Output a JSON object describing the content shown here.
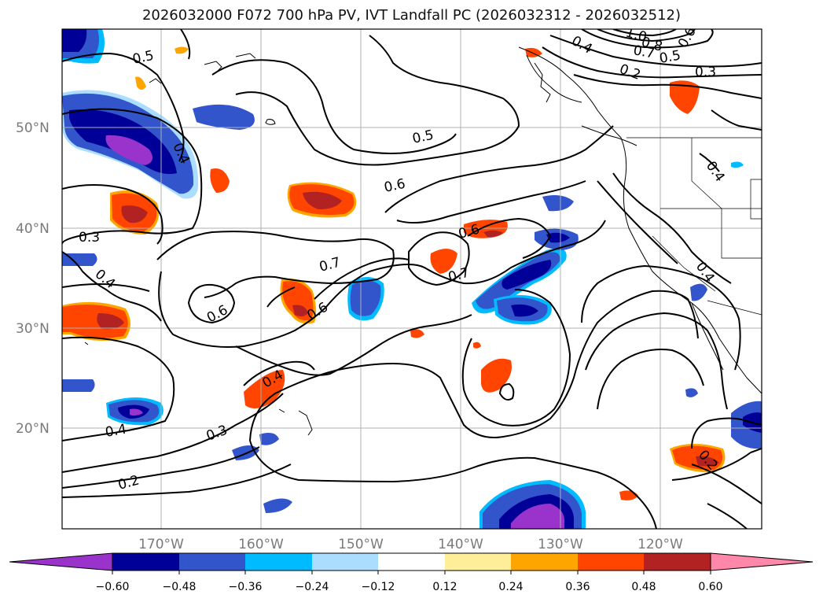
{
  "title": "2026032000 F072 700 hPa PV, IVT Landfall PC (2026032312 - 2026032512)",
  "map": {
    "lat_ticks": [
      "50°N",
      "40°N",
      "30°N",
      "20°N"
    ],
    "lon_ticks": [
      "170°W",
      "160°W",
      "150°W",
      "140°W",
      "130°W",
      "120°W"
    ],
    "colors": {
      "bg": "#ffffff",
      "neg_extreme": "#9933cc",
      "neg_strong": "#000099",
      "neg_mid": "#3355cc",
      "neg_weak": "#00bbff",
      "neg_faint": "#aaddff",
      "pos_faint": "#ffee99",
      "pos_weak": "#ffa500",
      "pos_mid": "#ff4500",
      "pos_strong": "#b22222",
      "pos_extreme": "#ff88aa"
    },
    "contour_labels": [
      {
        "id": "c1",
        "text": "0.5"
      },
      {
        "id": "c2",
        "text": "0.4"
      },
      {
        "id": "c3",
        "text": "0.3"
      },
      {
        "id": "c4",
        "text": "0.4"
      },
      {
        "id": "c5",
        "text": "0.5"
      },
      {
        "id": "c6",
        "text": "0.6"
      },
      {
        "id": "c7",
        "text": "0.6"
      },
      {
        "id": "c8",
        "text": "0.7"
      },
      {
        "id": "c9",
        "text": "0.7"
      },
      {
        "id": "c10",
        "text": "0.6"
      },
      {
        "id": "c11",
        "text": "0.6"
      },
      {
        "id": "c12",
        "text": "0.4"
      },
      {
        "id": "c13",
        "text": "0.3"
      },
      {
        "id": "c14",
        "text": "0.4"
      },
      {
        "id": "c15",
        "text": "0.2"
      },
      {
        "id": "c16",
        "text": "0.4"
      },
      {
        "id": "c17",
        "text": "1.0"
      },
      {
        "id": "c18",
        "text": "0.8"
      },
      {
        "id": "c19",
        "text": "0.7"
      },
      {
        "id": "c20",
        "text": "0.6"
      },
      {
        "id": "c21",
        "text": "0.5"
      },
      {
        "id": "c22",
        "text": "0.2"
      },
      {
        "id": "c23",
        "text": "0.3"
      },
      {
        "id": "c24",
        "text": "0.4"
      },
      {
        "id": "c25",
        "text": "0.2"
      },
      {
        "id": "c26",
        "text": "0.4"
      }
    ]
  },
  "colorbar": {
    "ticks": [
      "−0.60",
      "−0.48",
      "−0.36",
      "−0.24",
      "−0.12",
      "0.12",
      "0.24",
      "0.36",
      "0.48",
      "0.60"
    ],
    "colors": [
      "#9933cc",
      "#000099",
      "#3355cc",
      "#00bbff",
      "#aaddff",
      "#ffffff",
      "#ffee99",
      "#ffa500",
      "#ff4500",
      "#b22222",
      "#ff88aa"
    ]
  }
}
